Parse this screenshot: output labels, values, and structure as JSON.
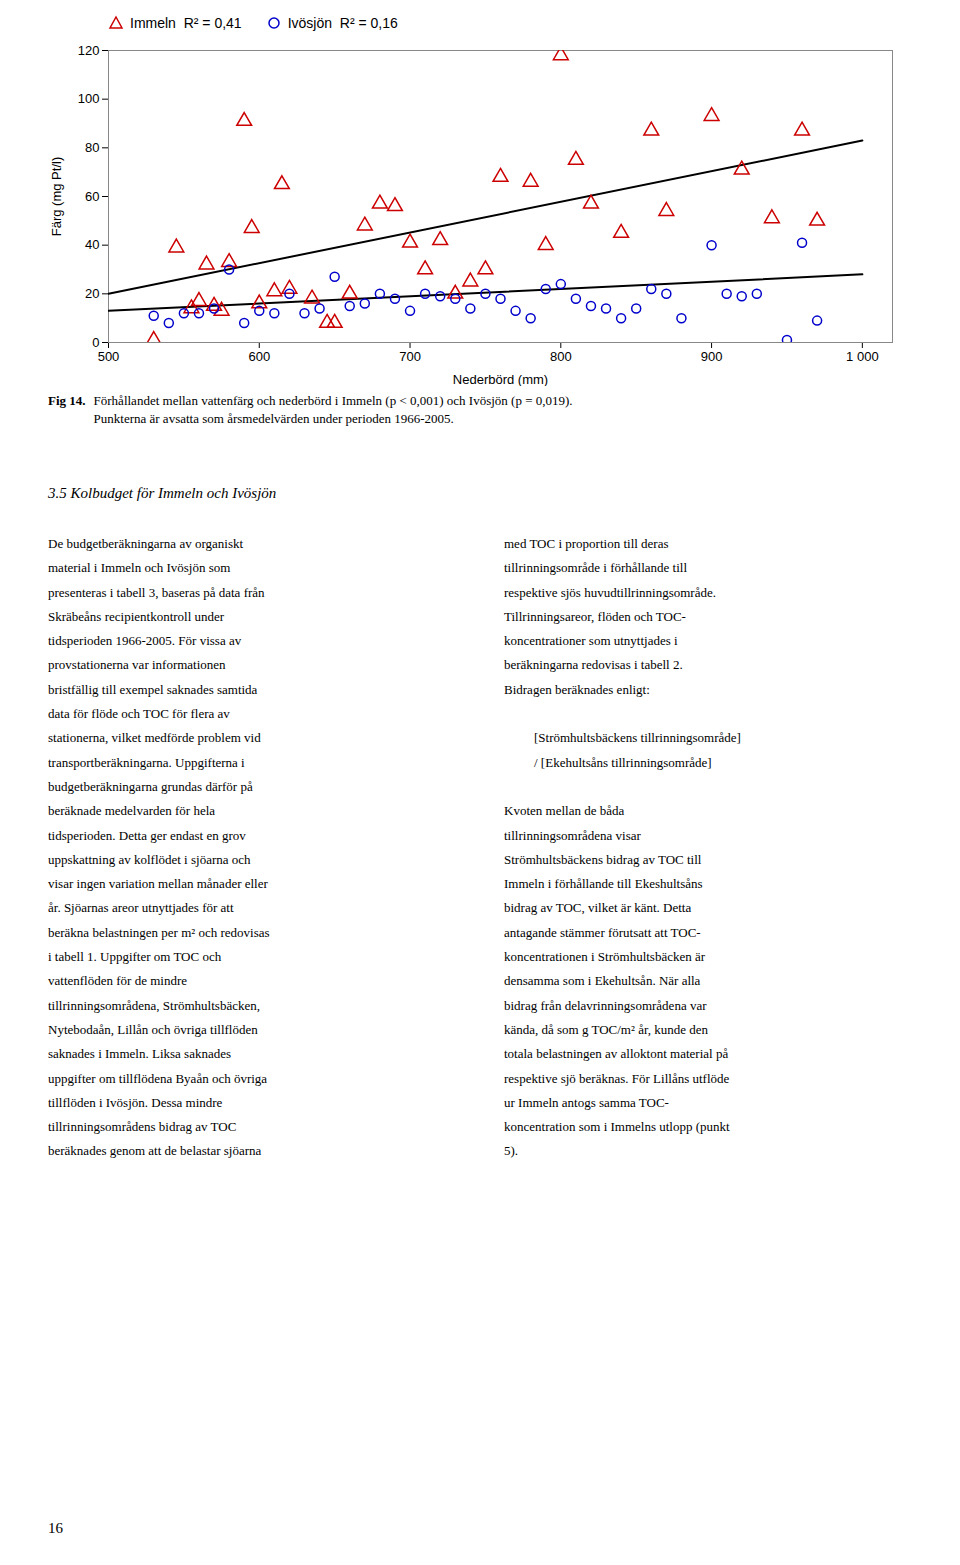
{
  "chart_data": {
    "type": "scatter",
    "xlabel": "Nederbörd (mm)",
    "ylabel": "Färg (mg Pt/l)",
    "xlim": [
      500,
      1020
    ],
    "ylim": [
      0,
      120
    ],
    "xticks": [
      500,
      600,
      700,
      800,
      900,
      {
        "value": 1000,
        "label": "1 000"
      }
    ],
    "yticks": [
      0,
      20,
      40,
      60,
      80,
      100,
      120
    ],
    "grid": false,
    "legend": "upper left",
    "series": [
      {
        "name": "Immeln  R² = 0,41",
        "color": "#cc0000",
        "marker": "triangle",
        "x": [
          530,
          545,
          555,
          560,
          565,
          570,
          575,
          580,
          590,
          595,
          600,
          610,
          615,
          620,
          635,
          645,
          650,
          660,
          670,
          680,
          690,
          700,
          710,
          720,
          730,
          740,
          750,
          760,
          780,
          790,
          800,
          810,
          820,
          840,
          860,
          870,
          900,
          920,
          940,
          960,
          970
        ],
        "values": [
          1,
          39,
          14,
          17,
          32,
          15,
          13,
          33,
          91,
          47,
          16,
          21,
          65,
          22,
          18,
          8,
          8,
          20,
          48,
          57,
          56,
          41,
          30,
          42,
          20,
          25,
          30,
          68,
          66,
          40,
          118,
          75,
          57,
          45,
          87,
          54,
          93,
          71,
          51,
          87,
          50
        ]
      },
      {
        "name": "Ivösjön  R² = 0,16",
        "color": "#0000cc",
        "marker": "circle",
        "x": [
          530,
          540,
          550,
          560,
          570,
          580,
          590,
          600,
          610,
          620,
          630,
          640,
          650,
          660,
          670,
          680,
          690,
          700,
          710,
          720,
          730,
          740,
          750,
          760,
          770,
          780,
          790,
          800,
          810,
          820,
          830,
          840,
          850,
          860,
          870,
          880,
          900,
          910,
          920,
          930,
          950,
          960,
          970
        ],
        "values": [
          11,
          8,
          12,
          12,
          14,
          30,
          8,
          13,
          12,
          20,
          12,
          14,
          27,
          15,
          16,
          20,
          18,
          13,
          20,
          19,
          18,
          14,
          20,
          18,
          13,
          10,
          22,
          24,
          18,
          15,
          14,
          10,
          14,
          22,
          20,
          10,
          40,
          20,
          19,
          20,
          1,
          41,
          9
        ]
      }
    ],
    "trend_lines": [
      {
        "x": [
          500,
          1000
        ],
        "values": [
          20,
          83
        ],
        "color": "#000000"
      },
      {
        "x": [
          500,
          1000
        ],
        "values": [
          13,
          28
        ],
        "color": "#000000"
      }
    ],
    "caption_bold": "Fig 14.",
    "caption": [
      "Förhållandet mellan vattenfärg och nederbörd i Immeln (p < 0,001) och Ivösjön (p = 0,019).",
      "Punkterna är avsatta som årsmedelvärden under perioden 1966-2005."
    ],
    "section_title": "3.5 Kolbudget för Immeln och Ivösjön",
    "left_column_lines": [
      "De budgetberäkningarna av organiskt",
      "material i Immeln och Ivösjön som",
      "presenteras i tabell 3, baseras på data från",
      "Skräbeåns recipientkontroll under",
      "tidsperioden 1966-2005. För vissa av",
      "provstationerna var informationen",
      "bristfällig till exempel saknades samtida",
      "data för flöde och TOC för flera av",
      "stationerna, vilket medförde problem vid",
      "transportberäkningarna. Uppgifterna i",
      "budgetberäkningarna grundas därför på",
      "beräknade medelvarden för hela",
      "tidsperioden. Detta ger endast en grov",
      "uppskattning av kolflödet i sjöarna och",
      "visar ingen variation mellan månader eller",
      "år. Sjöarnas areor utnyttjades för att",
      "beräkna belastningen per m² och redovisas",
      "i tabell 1. Uppgifter om TOC och",
      "vattenflöden för de mindre",
      "tillrinningsområdena, Strömhultsbäcken,",
      "Nytebodaån, Lillån och övriga tillflöden",
      "saknades i Immeln. Liksa saknades",
      "uppgifter om tillflödena Byaån och övriga",
      "tillflöden i Ivösjön. Dessa mindre",
      "tillrinningsområdens bidrag av TOC",
      "beräknades genom att de belastar sjöarna"
    ],
    "right_column_paragraphs": [
      [
        "med TOC i proportion till deras",
        "tillrinningsområde i förhållande till",
        "respektive sjös huvudtillrinningsområde.",
        "Tillrinningsareor, flöden och TOC-",
        "koncentrationer som utnyttjades i",
        "beräkningarna redovisas i tabell 2.",
        "Bidragen beräknades enligt:"
      ],
      [
        "[Strömhultsbäckens tillrinningsområde]",
        "/ [Ekehultsåns tillrinningsområde]"
      ],
      [
        "Kvoten mellan de båda",
        "tillrinningsområdena visar",
        "Strömhultsbäckens bidrag av TOC till",
        "Immeln i förhållande till Ekeshultsåns",
        "bidrag av TOC, vilket är känt. Detta",
        "antagande stämmer förutsatt att TOC-",
        "koncentrationen i Strömhultsbäcken är",
        "densamma som i Ekehultsån. När alla",
        "bidrag från delavrinningsområdena var",
        "kända, då som g TOC/m² år, kunde den",
        "totala belastningen av alloktont material på",
        "respektive sjö beräknas. För Lillåns utflöde",
        "ur Immeln antogs samma TOC-",
        "koncentration som i Immelns utlopp (punkt",
        "5)."
      ]
    ],
    "page_number": "16"
  }
}
